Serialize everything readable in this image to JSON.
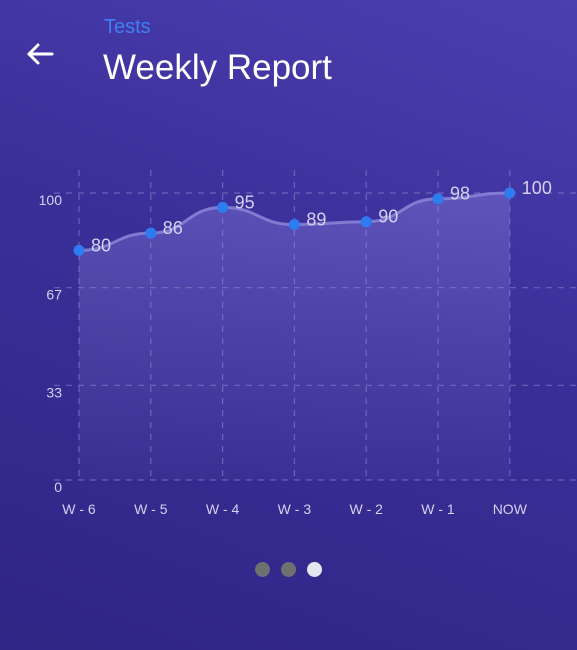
{
  "header": {
    "back_icon": "arrow-left-icon",
    "section_label": "Tests",
    "title": "Weekly Report"
  },
  "chart_data": {
    "type": "area",
    "categories": [
      "W - 6",
      "W - 5",
      "W - 4",
      "W - 3",
      "W - 2",
      "W - 1",
      "NOW"
    ],
    "series": [
      {
        "values": [
          80,
          86,
          95,
          89,
          90,
          98,
          100
        ]
      }
    ],
    "y_ticks": [
      "100",
      "67",
      "33",
      "0"
    ],
    "ylim": [
      0,
      100
    ],
    "grid": true,
    "colors": {
      "point": "#2e7cf0",
      "line": "#8a86d8",
      "grid": "#7a74c4",
      "label": "#d4d2ee"
    }
  },
  "pager": {
    "count": 3,
    "active_index": 2
  }
}
